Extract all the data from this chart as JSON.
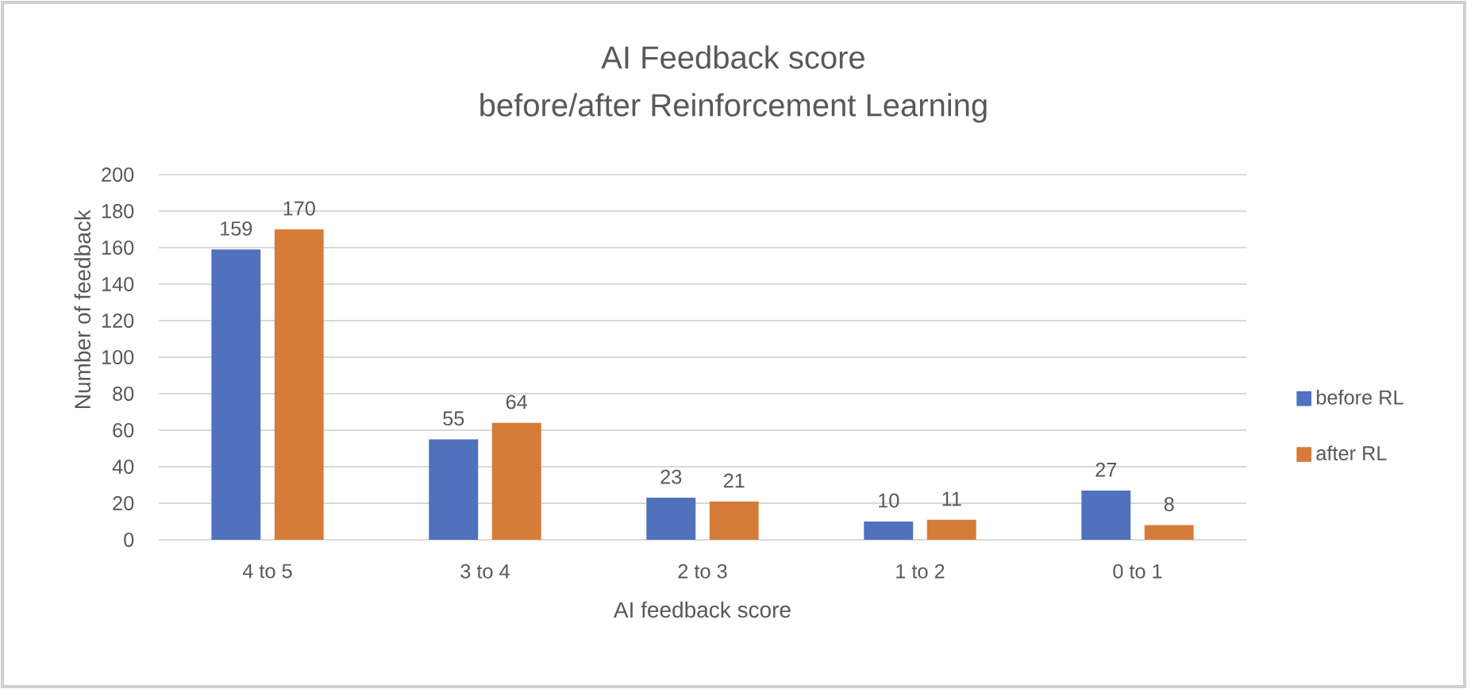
{
  "chart_data": {
    "type": "bar",
    "title": "AI Feedback score",
    "subtitle": "before/after Reinforcement Learning",
    "xlabel": "AI feedback score",
    "ylabel": "Number of feedback",
    "categories": [
      "4 to 5",
      "3 to 4",
      "2 to 3",
      "1 to 2",
      "0 to 1"
    ],
    "series": [
      {
        "name": "before RL",
        "color": "#4F71BE",
        "values": [
          159,
          55,
          23,
          10,
          27
        ]
      },
      {
        "name": "after RL",
        "color": "#D57C39",
        "values": [
          170,
          64,
          21,
          11,
          8
        ]
      }
    ],
    "ylim": [
      0,
      200
    ],
    "yticks": [
      0,
      20,
      40,
      60,
      80,
      100,
      120,
      140,
      160,
      180,
      200
    ],
    "grid": "y",
    "legend": "right",
    "data_labels": true
  }
}
